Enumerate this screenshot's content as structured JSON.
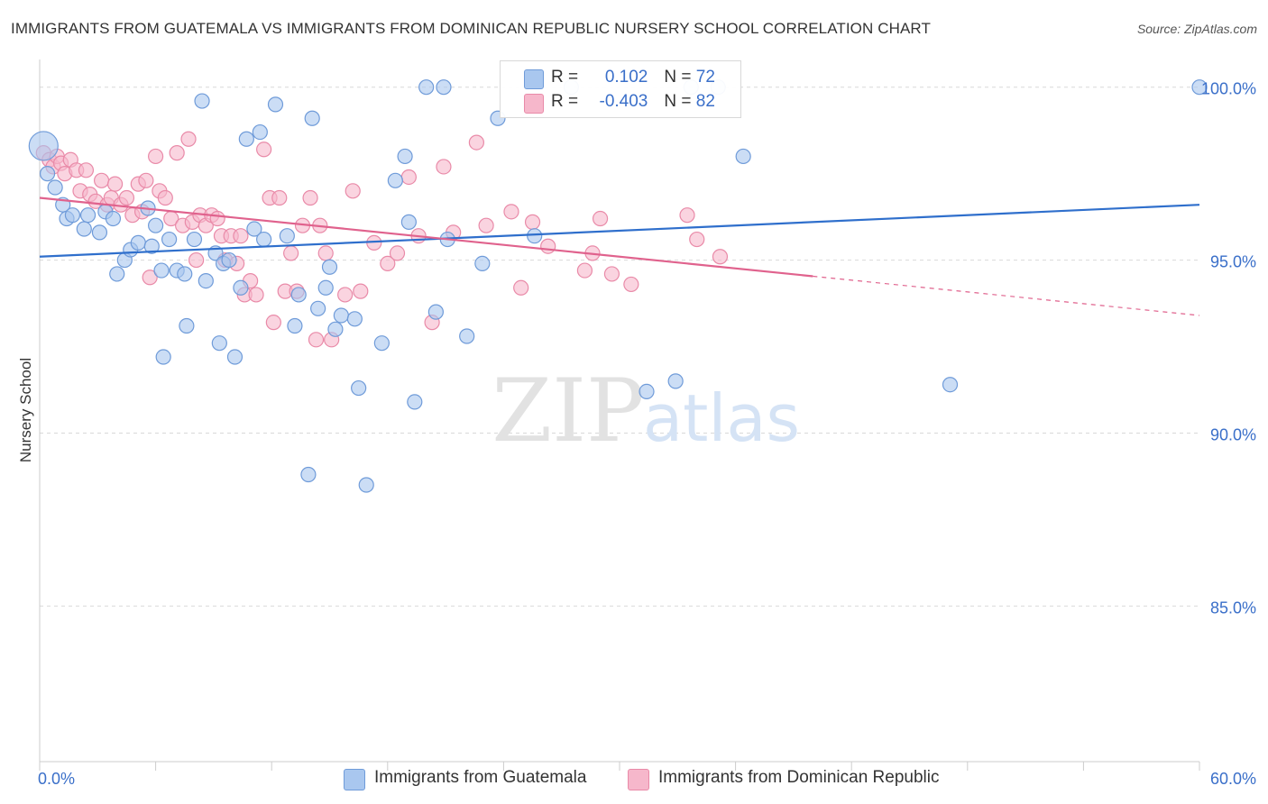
{
  "header": {
    "title": "IMMIGRANTS FROM GUATEMALA VS IMMIGRANTS FROM DOMINICAN REPUBLIC NURSERY SCHOOL CORRELATION CHART",
    "source": "Source: ZipAtlas.com"
  },
  "watermark": {
    "zip": "ZIP",
    "atlas": "atlas"
  },
  "legend": {
    "row1": {
      "r_label": "R = ",
      "r_value": "0.102",
      "n_label": "N = ",
      "n_value": "72"
    },
    "row2": {
      "r_label": "R = ",
      "r_value": "-0.403",
      "n_label": "N = ",
      "n_value": "82"
    }
  },
  "bottom_legend": {
    "s1": "Immigrants from Guatemala",
    "s2": "Immigrants from Dominican Republic"
  },
  "colors": {
    "blue_fill": "#a9c7ef",
    "blue_stroke": "#6f9bd9",
    "blue_line": "#2f6fcc",
    "pink_fill": "#f6b7cb",
    "pink_stroke": "#e98aa8",
    "pink_line": "#e0628d",
    "tick_text": "#3a6fc9",
    "grid": "#d9d9d9"
  },
  "chart_data": {
    "type": "scatter",
    "title": "IMMIGRANTS FROM GUATEMALA VS IMMIGRANTS FROM DOMINICAN REPUBLIC NURSERY SCHOOL CORRELATION CHART",
    "xlabel": "",
    "ylabel": "Nursery School",
    "xlim": [
      0,
      60
    ],
    "ylim": [
      80.5,
      100.8
    ],
    "x_tick_labels": [
      "0.0%",
      "60.0%"
    ],
    "y_ticks": [
      85,
      90,
      95,
      100
    ],
    "y_tick_labels": [
      "85.0%",
      "90.0%",
      "95.0%",
      "100.0%"
    ],
    "grid": true,
    "legend_position": "top-center",
    "series": [
      {
        "name": "Immigrants from Guatemala",
        "color": "#a9c7ef",
        "trend": {
          "x0": 0,
          "y0": 95.1,
          "x1": 60,
          "y1": 96.6,
          "dashed_from": null
        },
        "points": [
          [
            0.2,
            98.3
          ],
          [
            0.4,
            97.5
          ],
          [
            0.8,
            97.1
          ],
          [
            1.2,
            96.6
          ],
          [
            1.4,
            96.2
          ],
          [
            1.7,
            96.3
          ],
          [
            2.3,
            95.9
          ],
          [
            2.5,
            96.3
          ],
          [
            3.1,
            95.8
          ],
          [
            3.4,
            96.4
          ],
          [
            3.8,
            96.2
          ],
          [
            4.0,
            94.6
          ],
          [
            4.4,
            95.0
          ],
          [
            4.7,
            95.3
          ],
          [
            5.1,
            95.5
          ],
          [
            5.6,
            96.5
          ],
          [
            5.8,
            95.4
          ],
          [
            6.0,
            96.0
          ],
          [
            6.3,
            94.7
          ],
          [
            6.4,
            92.2
          ],
          [
            6.7,
            95.6
          ],
          [
            7.1,
            94.7
          ],
          [
            7.5,
            94.6
          ],
          [
            7.6,
            93.1
          ],
          [
            8.0,
            95.6
          ],
          [
            8.4,
            99.6
          ],
          [
            8.6,
            94.4
          ],
          [
            9.1,
            95.2
          ],
          [
            9.3,
            92.6
          ],
          [
            9.5,
            94.9
          ],
          [
            9.8,
            95.0
          ],
          [
            10.1,
            92.2
          ],
          [
            10.4,
            94.2
          ],
          [
            10.7,
            98.5
          ],
          [
            11.1,
            95.9
          ],
          [
            11.4,
            98.7
          ],
          [
            11.6,
            95.6
          ],
          [
            12.2,
            99.5
          ],
          [
            12.8,
            95.7
          ],
          [
            13.2,
            93.1
          ],
          [
            13.4,
            94.0
          ],
          [
            13.9,
            88.8
          ],
          [
            14.1,
            99.1
          ],
          [
            14.4,
            93.6
          ],
          [
            14.8,
            94.2
          ],
          [
            15.0,
            94.8
          ],
          [
            15.3,
            93.0
          ],
          [
            15.6,
            93.4
          ],
          [
            16.3,
            93.3
          ],
          [
            16.5,
            91.3
          ],
          [
            16.9,
            88.5
          ],
          [
            17.7,
            92.6
          ],
          [
            18.4,
            97.3
          ],
          [
            18.9,
            98.0
          ],
          [
            19.1,
            96.1
          ],
          [
            19.4,
            90.9
          ],
          [
            20.0,
            100.0
          ],
          [
            20.5,
            93.5
          ],
          [
            20.9,
            100.0
          ],
          [
            21.1,
            95.6
          ],
          [
            22.1,
            92.8
          ],
          [
            22.9,
            94.9
          ],
          [
            23.7,
            99.1
          ],
          [
            25.6,
            95.7
          ],
          [
            27.5,
            100.0
          ],
          [
            31.4,
            91.2
          ],
          [
            32.9,
            91.5
          ],
          [
            33.7,
            100.0
          ],
          [
            35.1,
            100.0
          ],
          [
            36.4,
            98.0
          ],
          [
            47.1,
            91.4
          ],
          [
            60.0,
            100.0
          ]
        ]
      },
      {
        "name": "Immigrants from Dominican Republic",
        "color": "#f6b7cb",
        "trend": {
          "x0": 0,
          "y0": 96.8,
          "x1": 60,
          "y1": 93.4,
          "dashed_from": 40.0
        },
        "points": [
          [
            0.2,
            98.1
          ],
          [
            0.5,
            97.9
          ],
          [
            0.7,
            97.7
          ],
          [
            0.9,
            98.0
          ],
          [
            1.1,
            97.8
          ],
          [
            1.3,
            97.5
          ],
          [
            1.6,
            97.9
          ],
          [
            1.9,
            97.6
          ],
          [
            2.1,
            97.0
          ],
          [
            2.4,
            97.6
          ],
          [
            2.6,
            96.9
          ],
          [
            2.9,
            96.7
          ],
          [
            3.2,
            97.3
          ],
          [
            3.5,
            96.6
          ],
          [
            3.7,
            96.8
          ],
          [
            3.9,
            97.2
          ],
          [
            4.2,
            96.6
          ],
          [
            4.5,
            96.8
          ],
          [
            4.8,
            96.3
          ],
          [
            5.1,
            97.2
          ],
          [
            5.3,
            96.4
          ],
          [
            5.5,
            97.3
          ],
          [
            5.7,
            94.5
          ],
          [
            6.0,
            98.0
          ],
          [
            6.2,
            97.0
          ],
          [
            6.5,
            96.8
          ],
          [
            6.8,
            96.2
          ],
          [
            7.1,
            98.1
          ],
          [
            7.4,
            96.0
          ],
          [
            7.7,
            98.5
          ],
          [
            7.9,
            96.1
          ],
          [
            8.1,
            95.0
          ],
          [
            8.3,
            96.3
          ],
          [
            8.6,
            96.0
          ],
          [
            8.9,
            96.3
          ],
          [
            9.2,
            96.2
          ],
          [
            9.4,
            95.7
          ],
          [
            9.6,
            95.0
          ],
          [
            9.9,
            95.7
          ],
          [
            10.2,
            94.9
          ],
          [
            10.4,
            95.7
          ],
          [
            10.6,
            94.0
          ],
          [
            10.9,
            94.4
          ],
          [
            11.2,
            94.0
          ],
          [
            11.6,
            98.2
          ],
          [
            11.9,
            96.8
          ],
          [
            12.1,
            93.2
          ],
          [
            12.4,
            96.8
          ],
          [
            12.7,
            94.1
          ],
          [
            13.0,
            95.2
          ],
          [
            13.3,
            94.1
          ],
          [
            13.6,
            96.0
          ],
          [
            14.0,
            96.8
          ],
          [
            14.3,
            92.7
          ],
          [
            14.5,
            96.0
          ],
          [
            14.8,
            95.2
          ],
          [
            15.1,
            92.7
          ],
          [
            15.8,
            94.0
          ],
          [
            16.2,
            97.0
          ],
          [
            16.6,
            94.1
          ],
          [
            17.3,
            95.5
          ],
          [
            18.0,
            94.9
          ],
          [
            18.5,
            95.2
          ],
          [
            19.1,
            97.4
          ],
          [
            19.6,
            95.7
          ],
          [
            20.3,
            93.2
          ],
          [
            20.9,
            97.7
          ],
          [
            21.4,
            95.8
          ],
          [
            22.6,
            98.4
          ],
          [
            23.1,
            96.0
          ],
          [
            24.4,
            96.4
          ],
          [
            24.9,
            94.2
          ],
          [
            25.5,
            96.1
          ],
          [
            26.3,
            95.4
          ],
          [
            28.2,
            94.7
          ],
          [
            28.6,
            95.2
          ],
          [
            29.0,
            96.2
          ],
          [
            29.6,
            94.6
          ],
          [
            30.6,
            94.3
          ],
          [
            33.5,
            96.3
          ],
          [
            34.0,
            95.6
          ],
          [
            35.2,
            95.1
          ]
        ]
      }
    ]
  }
}
